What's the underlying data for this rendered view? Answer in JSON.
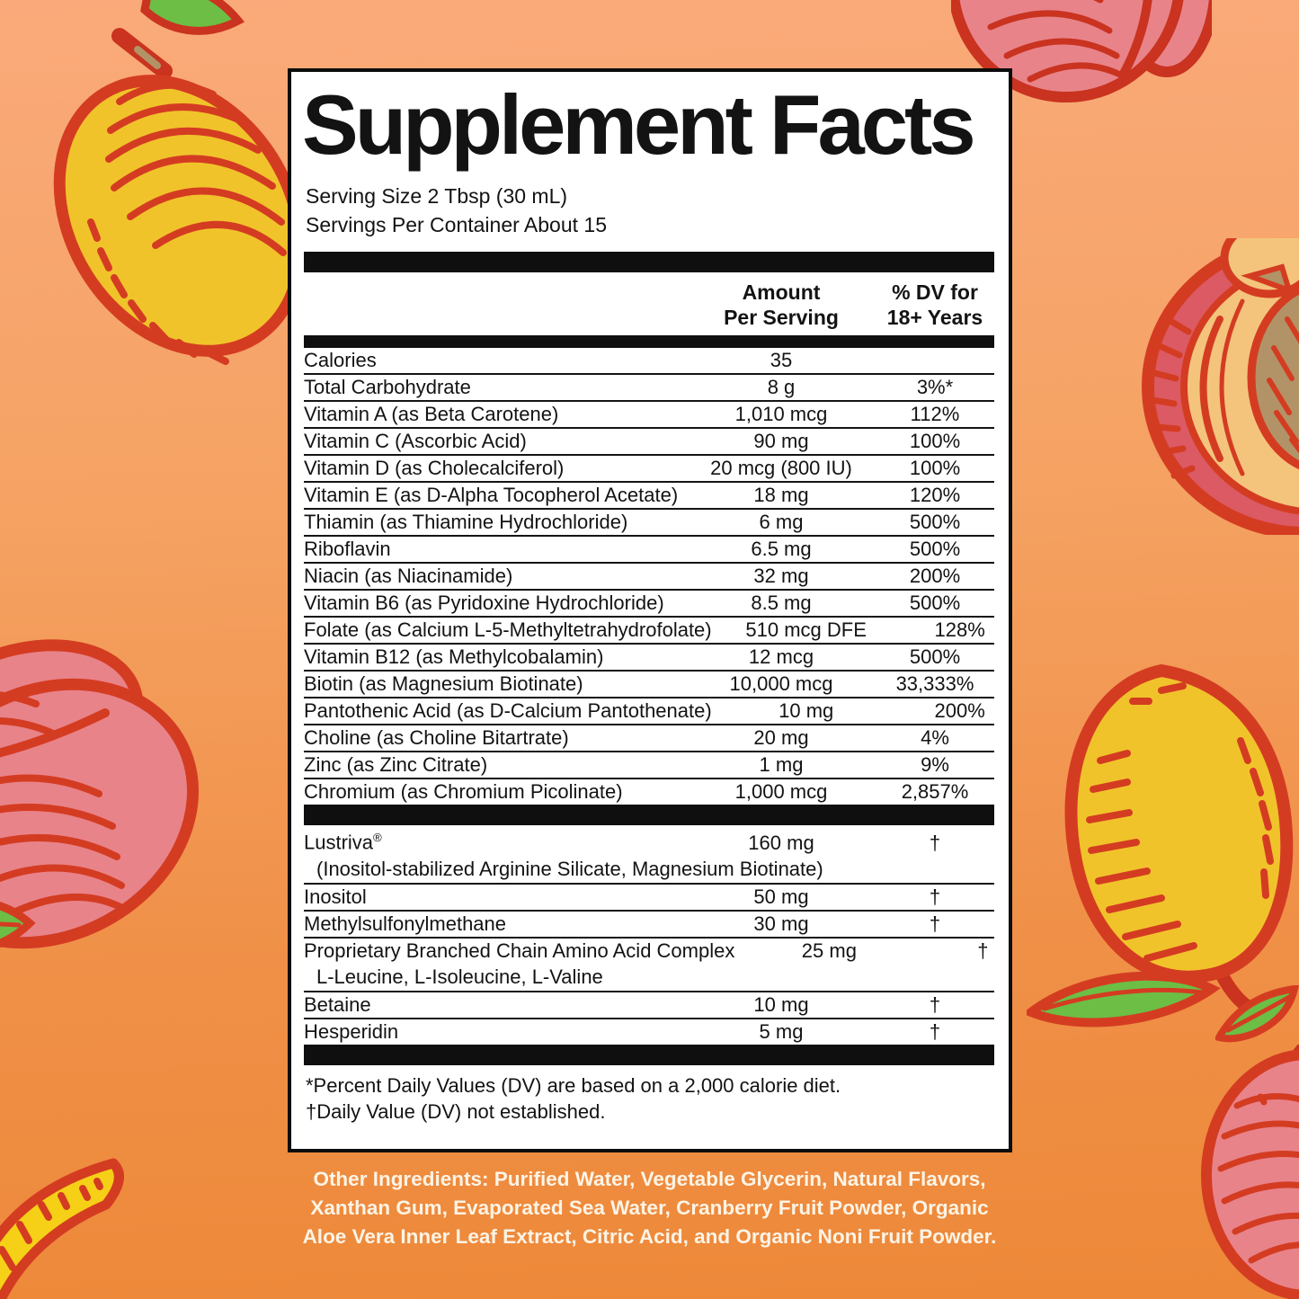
{
  "colors": {
    "background_top": "#FAAA7A",
    "background_bottom": "#ED8838",
    "panel_background": "#FFFFFF",
    "panel_border": "#0D0D0D",
    "divider_bar": "#0F0F0F",
    "ingredients_text": "#FCF4E6",
    "fruit_outline_red": "#D43C22",
    "fruit_pink": "#E8838A",
    "fruit_yellow": "#F1C32B",
    "fruit_green": "#6CBE45",
    "fruit_cream": "#F4C47C",
    "fruit_pit_tan": "#B29367"
  },
  "decorations": [
    "mango-illustration-top-left",
    "peach-illustration-top-right",
    "cut-peach-illustration-right",
    "peach-illustration-left",
    "mango-illustration-bottom-right",
    "leaf-illustration-bottom-right",
    "peach-illustration-bottom-right-corner",
    "mango-slice-illustration-bottom-left"
  ],
  "panel": {
    "title": "Supplement Facts",
    "serving_size": "Serving Size 2 Tbsp (30 mL)",
    "servings_per_container": "Servings Per Container About 15",
    "columns": {
      "amount_line1": "Amount",
      "amount_line2": "Per Serving",
      "dv_line1": "% DV for",
      "dv_line2": "18+ Years"
    },
    "section1_rows": [
      {
        "name": "Calories",
        "amount": "35",
        "dv": ""
      },
      {
        "name": "Total Carbohydrate",
        "amount": "8 g",
        "dv": "3%*"
      },
      {
        "name": "Vitamin A (as Beta Carotene)",
        "amount": "1,010 mcg",
        "dv": "112%"
      },
      {
        "name": "Vitamin C (Ascorbic Acid)",
        "amount": "90 mg",
        "dv": "100%"
      },
      {
        "name": "Vitamin D (as Cholecalciferol)",
        "amount": "20 mcg (800 IU)",
        "dv": "100%"
      },
      {
        "name": "Vitamin E (as D-Alpha Tocopherol Acetate)",
        "amount": "18 mg",
        "dv": "120%"
      },
      {
        "name": "Thiamin (as Thiamine Hydrochloride)",
        "amount": "6 mg",
        "dv": "500%"
      },
      {
        "name": "Riboflavin",
        "amount": "6.5 mg",
        "dv": "500%"
      },
      {
        "name": "Niacin (as Niacinamide)",
        "amount": "32 mg",
        "dv": "200%"
      },
      {
        "name": "Vitamin B6 (as Pyridoxine Hydrochloride)",
        "amount": "8.5 mg",
        "dv": "500%"
      },
      {
        "name": "Folate (as Calcium L-5-Methyltetrahydrofolate)",
        "amount": "510 mcg DFE",
        "dv": "128%"
      },
      {
        "name": "Vitamin B12 (as Methylcobalamin)",
        "amount": "12 mcg",
        "dv": "500%"
      },
      {
        "name": "Biotin (as Magnesium Biotinate)",
        "amount": "10,000 mcg",
        "dv": "33,333%"
      },
      {
        "name": "Pantothenic Acid (as D-Calcium Pantothenate)",
        "amount": "10 mg",
        "dv": "200%"
      },
      {
        "name": "Choline (as Choline Bitartrate)",
        "amount": "20 mg",
        "dv": "4%"
      },
      {
        "name": "Zinc (as Zinc Citrate)",
        "amount": "1 mg",
        "dv": "9%"
      },
      {
        "name": "Chromium (as Chromium Picolinate)",
        "amount": "1,000 mcg",
        "dv": "2,857%"
      }
    ],
    "section2_rows": [
      {
        "name": "Lustriva®",
        "amount": "160 mg",
        "dv": "†",
        "sub": "(Inositol-stabilized Arginine Silicate, Magnesium Biotinate)"
      },
      {
        "name": "Inositol",
        "amount": "50 mg",
        "dv": "†"
      },
      {
        "name": "Methylsulfonylmethane",
        "amount": "30 mg",
        "dv": "†"
      },
      {
        "name": "Proprietary Branched Chain Amino Acid Complex",
        "amount": "25 mg",
        "dv": "†",
        "sub": "L-Leucine, L-Isoleucine, L-Valine"
      },
      {
        "name": "Betaine",
        "amount": "10 mg",
        "dv": "†"
      },
      {
        "name": "Hesperidin",
        "amount": "5 mg",
        "dv": "†"
      }
    ],
    "footnotes": [
      "*Percent Daily Values (DV) are based on a 2,000 calorie diet.",
      "†Daily Value (DV) not established."
    ]
  },
  "other_ingredients": {
    "lines": [
      "Other Ingredients: Purified Water, Vegetable Glycerin, Natural Flavors,",
      "Xanthan Gum, Evaporated Sea Water, Cranberry Fruit Powder, Organic",
      "Aloe Vera Inner Leaf Extract, Citric Acid, and Organic Noni Fruit Powder."
    ]
  }
}
